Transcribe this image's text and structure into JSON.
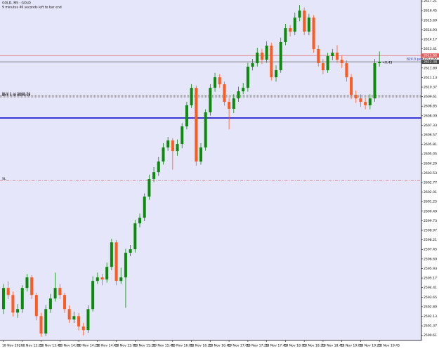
{
  "chart_data": {
    "type": "candlestick",
    "title": "GOLD, M5 : GOLD",
    "subtitle": "9 minutes 40 seconds left to bar end",
    "countdown": "<0:43",
    "spread_note": "824.0 pen",
    "up_color": "#0b8a0b",
    "down_color": "#ff5a1f",
    "background": "#e6e6fa",
    "grid": false,
    "categories": [
      "18 Nov 2024",
      null,
      null,
      null,
      "18 Nov 13:25",
      null,
      null,
      null,
      "18 Nov 13:45",
      null,
      null,
      null,
      "18 Nov 14:05",
      null,
      null,
      null,
      "18 Nov 14:25",
      null,
      null,
      null,
      "18 Nov 14:45",
      null,
      null,
      null,
      "18 Nov 15:05",
      null,
      null,
      null,
      "18 Nov 15:25",
      null,
      null,
      null,
      "18 Nov 15:45",
      null,
      null,
      null,
      "18 Nov 16:05",
      null,
      null,
      null,
      "18 Nov 16:25",
      null,
      null,
      null,
      "18 Nov 16:45",
      null,
      null,
      null,
      "18 Nov 17:05",
      null,
      null,
      null,
      "18 Nov 17:25",
      null,
      null,
      null,
      "18 Nov 17:45",
      null,
      null,
      null,
      "18 Nov 18:05",
      null,
      null,
      null,
      "18 Nov 18:25",
      null,
      null,
      null,
      "18 Nov 18:45",
      null,
      null,
      null,
      "18 Nov 19:05",
      null,
      null,
      null,
      "18 Nov 19:25",
      null,
      null,
      null,
      "18 Nov 19:45"
    ],
    "open": [
      2592.7,
      2594.38,
      2593.82,
      2592.42,
      2592.7,
      2594.38,
      2595.22,
      2593.82,
      2592.14,
      2590.75,
      2592.7,
      2593.54,
      2594.38,
      2593.82,
      2592.7,
      2591.87,
      2592.14,
      2591.31,
      2591.03,
      2592.7,
      2594.94,
      2595.22,
      2595.05,
      2596.06,
      2598.01,
      2594.94,
      2595.22,
      2597.18,
      2597.46,
      2599.52,
      2599.97,
      2601.65,
      2603.05,
      2603.6,
      2604.44,
      2605.56,
      2606.12,
      2605.28,
      2605.84,
      2607.24,
      2608.92,
      2610.31,
      2604.44,
      2605.56,
      2608.36,
      2610.31,
      2611.15,
      2610.59,
      2609.19,
      2608.64,
      2609.47,
      2610.03,
      2610.31,
      2611.99,
      2612.27,
      2613.11,
      2612.55,
      2613.67,
      2611.15,
      2611.71,
      2613.95,
      2615.06,
      2614.78,
      2615.9,
      2616.46,
      2614.78,
      2615.9,
      2613.39,
      2612.27,
      2611.71,
      2612.83,
      2613.11,
      2612.55,
      2612.27,
      2611.15,
      2609.75,
      2609.47,
      2609.19,
      2608.92,
      2609.47,
      2612.27
    ],
    "high": [
      2594.7,
      2594.9,
      2594.1,
      2593.1,
      2594.6,
      2595.5,
      2595.4,
      2594.0,
      2592.4,
      2593.0,
      2593.9,
      2595.6,
      2594.7,
      2594.0,
      2593.0,
      2592.5,
      2592.4,
      2591.6,
      2593.0,
      2595.3,
      2595.6,
      2595.5,
      2596.4,
      2598.3,
      2598.2,
      2596.0,
      2597.5,
      2597.8,
      2599.8,
      2600.3,
      2601.9,
      2603.4,
      2604.0,
      2604.8,
      2605.9,
      2606.4,
      2606.3,
      2606.2,
      2607.5,
      2609.2,
      2610.6,
      2610.5,
      2605.9,
      2608.6,
      2610.6,
      2611.5,
      2611.4,
      2610.8,
      2609.5,
      2609.8,
      2610.4,
      2610.7,
      2612.3,
      2612.6,
      2613.5,
      2613.4,
      2614.0,
      2613.9,
      2612.1,
      2614.3,
      2615.4,
      2615.3,
      2616.3,
      2616.9,
      2616.7,
      2616.2,
      2616.1,
      2613.7,
      2612.6,
      2613.1,
      2613.4,
      2613.7,
      2612.9,
      2612.5,
      2611.4,
      2610.1,
      2609.8,
      2609.5,
      2609.8,
      2612.6,
      2613.2
    ],
    "low": [
      2592.3,
      2593.5,
      2592.1,
      2592.0,
      2592.4,
      2594.1,
      2593.5,
      2591.8,
      2590.5,
      2590.55,
      2592.4,
      2593.3,
      2593.5,
      2592.4,
      2591.6,
      2591.6,
      2591.0,
      2590.6,
      2590.8,
      2592.5,
      2594.7,
      2594.6,
      2594.8,
      2595.8,
      2594.6,
      2594.7,
      2592.8,
      2596.9,
      2597.2,
      2599.2,
      2599.7,
      2601.4,
      2602.8,
      2603.3,
      2604.2,
      2605.3,
      2603.8,
      2604.9,
      2605.5,
      2607.0,
      2608.7,
      2604.1,
      2604.2,
      2605.3,
      2608.1,
      2610.0,
      2610.3,
      2608.9,
      2607.0,
      2608.3,
      2609.2,
      2609.8,
      2610.0,
      2611.7,
      2612.0,
      2612.2,
      2612.3,
      2610.9,
      2610.8,
      2611.5,
      2613.7,
      2614.4,
      2614.5,
      2615.6,
      2614.5,
      2614.5,
      2613.1,
      2612.0,
      2611.4,
      2611.5,
      2612.5,
      2612.3,
      2611.9,
      2610.8,
      2609.4,
      2609.1,
      2608.8,
      2608.6,
      2608.6,
      2609.2,
      2612.0
    ],
    "close": [
      2594.38,
      2593.82,
      2592.42,
      2592.7,
      2594.38,
      2595.22,
      2593.82,
      2592.14,
      2590.75,
      2592.7,
      2593.54,
      2594.38,
      2593.82,
      2592.7,
      2591.87,
      2592.14,
      2591.31,
      2591.03,
      2592.7,
      2594.94,
      2595.22,
      2595.05,
      2596.06,
      2598.01,
      2594.94,
      2595.22,
      2597.18,
      2597.46,
      2599.52,
      2599.97,
      2601.65,
      2603.05,
      2603.6,
      2604.44,
      2605.56,
      2606.12,
      2605.28,
      2605.84,
      2607.24,
      2608.92,
      2610.31,
      2604.44,
      2605.56,
      2608.36,
      2610.31,
      2611.15,
      2610.59,
      2609.19,
      2608.64,
      2609.47,
      2610.03,
      2610.31,
      2611.99,
      2612.27,
      2613.11,
      2612.55,
      2613.67,
      2611.15,
      2611.71,
      2613.95,
      2615.06,
      2614.78,
      2615.9,
      2616.46,
      2614.78,
      2615.9,
      2613.39,
      2612.27,
      2611.71,
      2612.83,
      2613.11,
      2612.55,
      2612.27,
      2611.15,
      2609.75,
      2609.47,
      2609.19,
      2608.92,
      2609.47,
      2612.27,
      2612.38
    ],
    "ylim": [
      2590.2,
      2617.3
    ],
    "yticks": [
      2590.61,
      2591.37,
      2592.13,
      2592.89,
      2593.65,
      2594.41,
      2595.17,
      2595.93,
      2596.69,
      2597.45,
      2598.21,
      2598.97,
      2599.73,
      2600.49,
      2601.25,
      2602.01,
      2602.77,
      2603.53,
      2604.29,
      2605.05,
      2605.81,
      2606.57,
      2607.33,
      2608.09,
      2608.85,
      2609.61,
      2610.37,
      2611.13,
      2611.89,
      2612.65,
      2613.41,
      2614.17,
      2614.93,
      2615.69,
      2616.45,
      2617.21
    ],
    "levels": [
      {
        "value": 2612.88,
        "color": "#e05a5a",
        "style": "solid",
        "tag": true
      },
      {
        "value": 2612.38,
        "color": "#4a4a4a",
        "style": "solid",
        "tag": true
      },
      {
        "value": 2607.91,
        "color": "#2a2ad0",
        "style": "thick"
      },
      {
        "value": 2609.7,
        "color": "#444444",
        "style": "dotted",
        "label": "BUY 1 at 2609.70"
      },
      {
        "value": 2609.59,
        "color": "#444444",
        "style": "dotted",
        "label": "BUY 1 at 2609.59"
      },
      {
        "value": 2602.93,
        "color": "#e05a5a",
        "style": "dashdot",
        "label": "SL"
      }
    ]
  }
}
